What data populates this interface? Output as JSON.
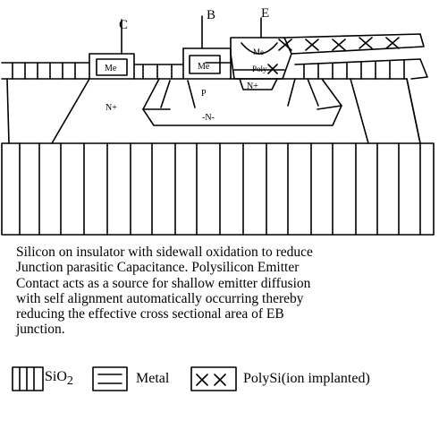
{
  "terminals": {
    "collector": "C",
    "base": "B",
    "emitter": "E"
  },
  "regions": {
    "collector_contact": "N+",
    "base": "P",
    "buried": "-N-",
    "emitter": "N+",
    "metal": "Me",
    "polysilicon": "Poly"
  },
  "caption_lines": [
    "Silicon on insulator with sidewall oxidation to reduce",
    "Junction parasitic Capacitance. Polysilicon Emitter",
    "Contact acts as a source for shallow emitter diffusion",
    "with self alignment automatically occurring thereby",
    "reducing the effective cross sectional area of EB",
    "junction."
  ],
  "legend": {
    "sio2_main": "SiO",
    "sio2_sub": "2",
    "metal": "Metal",
    "polysi": "PolySi(ion implanted)"
  }
}
